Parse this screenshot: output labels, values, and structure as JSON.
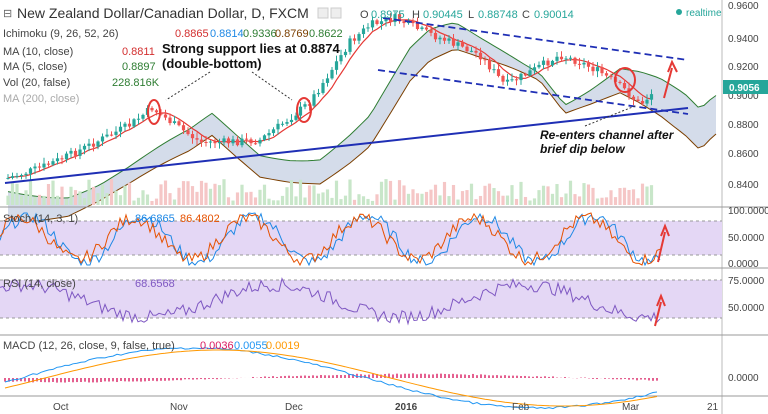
{
  "chart_data": {
    "type": "candlestick",
    "title": "New Zealand Dollar/Canadian Dollar, D, FXCM",
    "ohlc": {
      "o_label": "O",
      "o": "0.8975",
      "h_label": "H",
      "h": "0.90445",
      "l_label": "L",
      "l": "0.88748",
      "c_label": "C",
      "c": "0.90014"
    },
    "realtime_label": "realtime",
    "last_price": "0.9056",
    "price_axis": [
      "0.9600",
      "0.9400",
      "0.9200",
      "0.9000",
      "0.8800",
      "0.8600",
      "0.8400"
    ],
    "x_ticks": [
      "Oct",
      "Nov",
      "Dec",
      "2016",
      "Feb",
      "Mar",
      "21"
    ],
    "indicators": {
      "ichimoku": {
        "label": "Ichimoku (9, 26, 52, 26)",
        "values": [
          "0.8865",
          "0.8814",
          "0.9336",
          "0.8769",
          "0.8622"
        ],
        "colors": [
          "#d32f2f",
          "#1e88e5",
          "#2e7d32",
          "#7b3f00",
          "#2e7d32"
        ]
      },
      "ma10": {
        "label": "MA (10, close)",
        "value": "0.8811"
      },
      "ma5": {
        "label": "MA (5, close)",
        "value": "0.8897"
      },
      "vol": {
        "label": "Vol (20, false)",
        "value": "228.816K"
      },
      "ma200": {
        "label": "MA (200, close)"
      }
    },
    "annotations": {
      "support_1": "Strong support lies at 0.8874",
      "support_2": "(double-bottom)",
      "reenter_1": "Re-enters channel after",
      "reenter_2": "brief dip below"
    },
    "stoch": {
      "label": "Stoch (14, 3, 1)",
      "values": [
        "86.6865",
        "86.4802"
      ],
      "axis": [
        "100.0000",
        "50.0000",
        "0.0000"
      ]
    },
    "rsi": {
      "label": "RSI (14, close)",
      "value": "68.6568",
      "axis": [
        "75.0000",
        "50.0000"
      ]
    },
    "macd": {
      "label": "MACD (12, 26, close, 9, false, true)",
      "values": [
        "0.0036",
        "0.0055",
        "0.0019"
      ],
      "axis": [
        "0.0000"
      ]
    },
    "colors": {
      "up": "#26a69a",
      "down": "#ef5350",
      "trend": "#1f2fb5",
      "ma_red": "#e53935",
      "ma_green": "#2e7d32",
      "cloud": "#b0bfd8",
      "osc": "#7e57c2",
      "macd_blue": "#2196f3",
      "macd_orange": "#ff9800",
      "annot_red": "#e53935"
    }
  }
}
